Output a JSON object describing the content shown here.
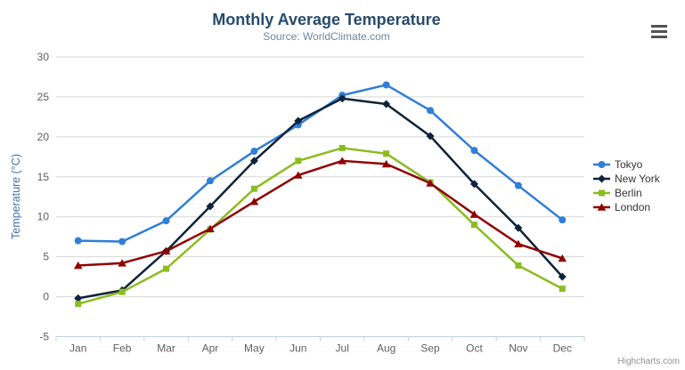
{
  "chart_data": {
    "type": "line",
    "title": "Monthly Average Temperature",
    "subtitle": "Source: WorldClimate.com",
    "xlabel": "",
    "ylabel": "Temperature (°C)",
    "categories": [
      "Jan",
      "Feb",
      "Mar",
      "Apr",
      "May",
      "Jun",
      "Jul",
      "Aug",
      "Sep",
      "Oct",
      "Nov",
      "Dec"
    ],
    "ylim": [
      -5,
      30
    ],
    "ytick_step": 5,
    "grid": true,
    "legend_position": "right",
    "series": [
      {
        "name": "Tokyo",
        "color": "#2f7ed8",
        "marker": "circle",
        "values": [
          7.0,
          6.9,
          9.5,
          14.5,
          18.2,
          21.5,
          25.2,
          26.5,
          23.3,
          18.3,
          13.9,
          9.6
        ]
      },
      {
        "name": "New York",
        "color": "#0d233a",
        "marker": "diamond",
        "values": [
          -0.2,
          0.8,
          5.7,
          11.3,
          17.0,
          22.0,
          24.8,
          24.1,
          20.1,
          14.1,
          8.6,
          2.5
        ]
      },
      {
        "name": "Berlin",
        "color": "#8bbc21",
        "marker": "square",
        "values": [
          -0.9,
          0.6,
          3.5,
          8.4,
          13.5,
          17.0,
          18.6,
          17.9,
          14.3,
          9.0,
          3.9,
          1.0
        ]
      },
      {
        "name": "London",
        "color": "#910000",
        "marker": "triangle",
        "values": [
          3.9,
          4.2,
          5.7,
          8.5,
          11.9,
          15.2,
          17.0,
          16.6,
          14.2,
          10.3,
          6.6,
          4.8
        ]
      }
    ]
  },
  "credits": {
    "text": "Highcharts.com"
  },
  "icons": {
    "context_menu": "hamburger-icon"
  },
  "colors": {
    "background": "#ffffff",
    "title": "#274b6d",
    "subtitle": "#6d869f",
    "axis_title": "#4572a7",
    "axis_label": "#606060",
    "grid_line": "#d8d8d8",
    "axis_line": "#c0d0e0",
    "legend_text": "#333333",
    "credit": "#909090",
    "burger": "#545454"
  }
}
